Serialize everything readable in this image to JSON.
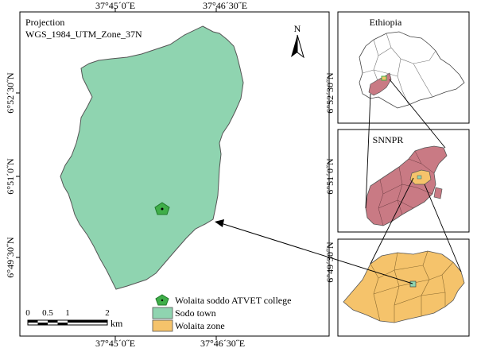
{
  "coords": {
    "top_left": "37°45´0˝E",
    "top_right": "37°46´30˝E",
    "bottom_left": "37°45´0˝E",
    "bottom_right": "37°46´30˝E",
    "left_1": "6°52´30˝N",
    "left_2": "6°51´0˝N",
    "left_3": "6°49´30˝N",
    "right_1": "6°52´30˝N",
    "right_2": "6°51´0˝N",
    "right_3": "6°49´30˝N"
  },
  "projection": {
    "line1": "Projection",
    "line2": "WGS_1984_UTM_Zone_37N"
  },
  "north_arrow": {
    "letter": "N",
    "icon": "north-arrow-icon"
  },
  "inset_labels": {
    "country": "Ethiopia",
    "region": "SNNPR"
  },
  "legend": {
    "items": [
      {
        "label": "Wolaita soddo ATVET college",
        "icon": "pentagon-marker-icon",
        "color": "#3fae49"
      },
      {
        "label": "Sodo town",
        "color": "#8fd4b0"
      },
      {
        "label": "Wolaita zone",
        "color": "#f5c36b"
      }
    ]
  },
  "scale_bar": {
    "ticks": [
      "0",
      "0.5",
      "1",
      "2"
    ],
    "unit": "km"
  },
  "colors": {
    "sodo_town": "#8fd4b0",
    "region_fill": "#c97a84",
    "zone_fill": "#f5c36b",
    "marker": "#3fae49"
  }
}
